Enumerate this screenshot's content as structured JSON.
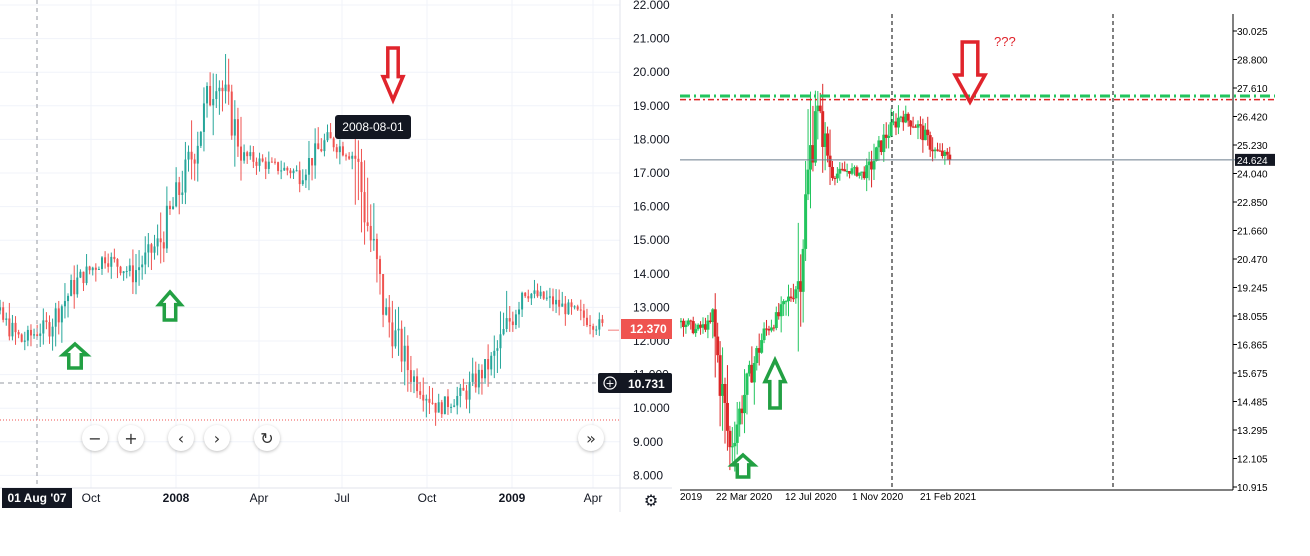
{
  "colors": {
    "tv_up": "#26a69a",
    "tv_down": "#ef5350",
    "mt_up": "#22c55e",
    "mt_down": "#dc2626",
    "arrow_green": "#22a043",
    "arrow_red": "#e0242c",
    "price_badge": "#ef5350",
    "crosshair_badge": "#131722",
    "resistance_green": "#22c55e",
    "resistance_red": "#dc2626",
    "last_price_line": "#6b7c8c"
  },
  "left_chart": {
    "y_ticks": [
      "22.000",
      "21.000",
      "20.000",
      "19.000",
      "18.000",
      "17.000",
      "16.000",
      "15.000",
      "14.000",
      "13.000",
      "12.000",
      "11.000",
      "10.000",
      "9.000",
      "8.000"
    ],
    "x_ticks": [
      "Oct",
      "2008",
      "Apr",
      "Jul",
      "Oct",
      "2009",
      "Apr"
    ],
    "crosshair_date": "01 Aug '07",
    "hover_tooltip": "2008-08-01",
    "last_price": "12.370",
    "crosshair_price": "10.731",
    "controls": {
      "zoom_out": "−",
      "zoom_in": "+",
      "back": "‹",
      "forward": "›",
      "reset": "↻",
      "scroll_end": "»"
    },
    "settings_icon": "⚙"
  },
  "right_chart": {
    "y_ticks": [
      "30.025",
      "28.800",
      "27.610",
      "26.420",
      "25.230",
      "24.040",
      "22.850",
      "21.660",
      "20.470",
      "19.245",
      "18.055",
      "16.865",
      "15.675",
      "14.485",
      "13.295",
      "12.105",
      "10.915"
    ],
    "x_ticks": [
      "2019",
      "22 Mar 2020",
      "12 Jul 2020",
      "1 Nov 2020",
      "21 Feb 2021"
    ],
    "last_price": "24.624",
    "annotation": "???"
  },
  "chart_data": [
    {
      "type": "candlestick",
      "title": "",
      "x_range": [
        "2007-06",
        "2009-06"
      ],
      "ylim": [
        8,
        22
      ],
      "closes_monthly": [
        {
          "x": "2007-06",
          "y": 12.5
        },
        {
          "x": "2007-07",
          "y": 12.9
        },
        {
          "x": "2007-08",
          "y": 12.0
        },
        {
          "x": "2007-09",
          "y": 12.5
        },
        {
          "x": "2007-10",
          "y": 13.8
        },
        {
          "x": "2007-11",
          "y": 14.5
        },
        {
          "x": "2007-12",
          "y": 14.0
        },
        {
          "x": "2008-01",
          "y": 15.0
        },
        {
          "x": "2008-02",
          "y": 17.2
        },
        {
          "x": "2008-03",
          "y": 20.0
        },
        {
          "x": "2008-04",
          "y": 17.5
        },
        {
          "x": "2008-05",
          "y": 17.2
        },
        {
          "x": "2008-06",
          "y": 17.0
        },
        {
          "x": "2008-07",
          "y": 18.0
        },
        {
          "x": "2008-08",
          "y": 17.5
        },
        {
          "x": "2008-09",
          "y": 13.0
        },
        {
          "x": "2008-10",
          "y": 11.0
        },
        {
          "x": "2008-11",
          "y": 10.0
        },
        {
          "x": "2008-12",
          "y": 10.5
        },
        {
          "x": "2009-01",
          "y": 11.5
        },
        {
          "x": "2009-02",
          "y": 13.5
        },
        {
          "x": "2009-03",
          "y": 13.2
        },
        {
          "x": "2009-04",
          "y": 12.8
        },
        {
          "x": "2009-05",
          "y": 12.37
        }
      ]
    },
    {
      "type": "candlestick",
      "title": "",
      "x_range": [
        "2019-12",
        "2021-06"
      ],
      "ylim": [
        10.915,
        30.025
      ],
      "closes_monthly": [
        {
          "x": "2019-12",
          "y": 18.0
        },
        {
          "x": "2020-01",
          "y": 17.5
        },
        {
          "x": "2020-02",
          "y": 17.8
        },
        {
          "x": "2020-03",
          "y": 12.5
        },
        {
          "x": "2020-04",
          "y": 15.2
        },
        {
          "x": "2020-05",
          "y": 17.4
        },
        {
          "x": "2020-06",
          "y": 18.2
        },
        {
          "x": "2020-07",
          "y": 19.5
        },
        {
          "x": "2020-08",
          "y": 27.0
        },
        {
          "x": "2020-09",
          "y": 24.0
        },
        {
          "x": "2020-10",
          "y": 24.2
        },
        {
          "x": "2020-11",
          "y": 24.0
        },
        {
          "x": "2020-12",
          "y": 25.5
        },
        {
          "x": "2021-01",
          "y": 26.5
        },
        {
          "x": "2021-02",
          "y": 26.0
        },
        {
          "x": "2021-03",
          "y": 25.0
        },
        {
          "x": "2021-04",
          "y": 24.62
        }
      ],
      "horizontal_lines": [
        {
          "y": 27.3,
          "style": "dash-dot",
          "color": "green"
        },
        {
          "y": 27.15,
          "style": "dash-dot",
          "color": "red"
        },
        {
          "y": 24.624,
          "style": "solid",
          "color": "gray"
        }
      ]
    }
  ]
}
